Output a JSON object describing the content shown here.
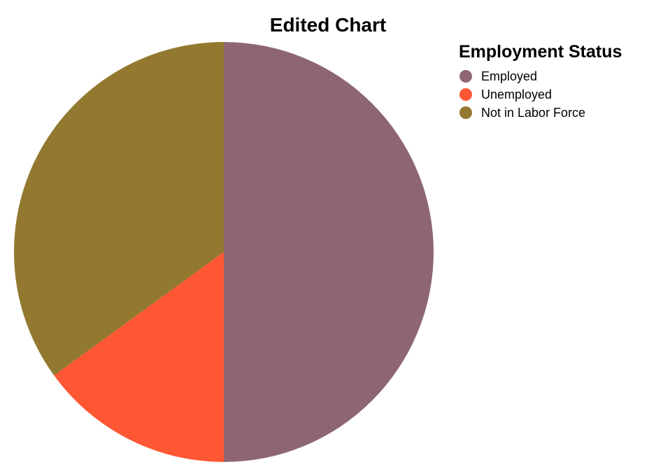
{
  "chart_data": {
    "type": "pie",
    "title": "Edited Chart",
    "legend_title": "Employment Status",
    "legend_position": "top-right",
    "categories": [
      "Employed",
      "Unemployed",
      "Not in Labor Force"
    ],
    "values": [
      50,
      15,
      35
    ],
    "colors": [
      "#8e6673",
      "#ff5733",
      "#937830"
    ]
  }
}
